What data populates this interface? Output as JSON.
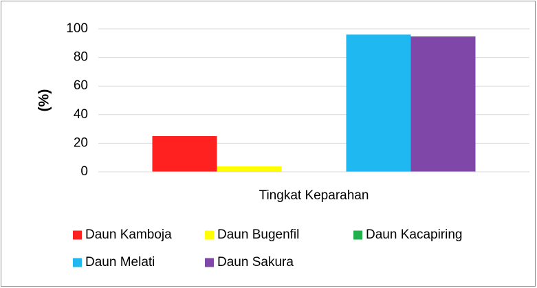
{
  "chart_data": {
    "type": "bar",
    "ylabel": "(%)",
    "categories": [
      "Tingkat Keparahan"
    ],
    "series": [
      {
        "name": "Daun Kamboja",
        "color": "#ff2020",
        "values": [
          25
        ]
      },
      {
        "name": "Daun Bugenfil",
        "color": "#ffff00",
        "values": [
          3.8
        ]
      },
      {
        "name": "Daun Kacapiring",
        "color": "#22b04c",
        "values": [
          0
        ]
      },
      {
        "name": "Daun Melati",
        "color": "#1fb8f0",
        "values": [
          96
        ]
      },
      {
        "name": "Daun Sakura",
        "color": "#7f48a8",
        "values": [
          94.7
        ]
      }
    ],
    "ylim": [
      0,
      100
    ],
    "yticks": [
      0,
      20,
      40,
      60,
      80,
      100
    ],
    "grid": true,
    "legend": "bottom"
  }
}
